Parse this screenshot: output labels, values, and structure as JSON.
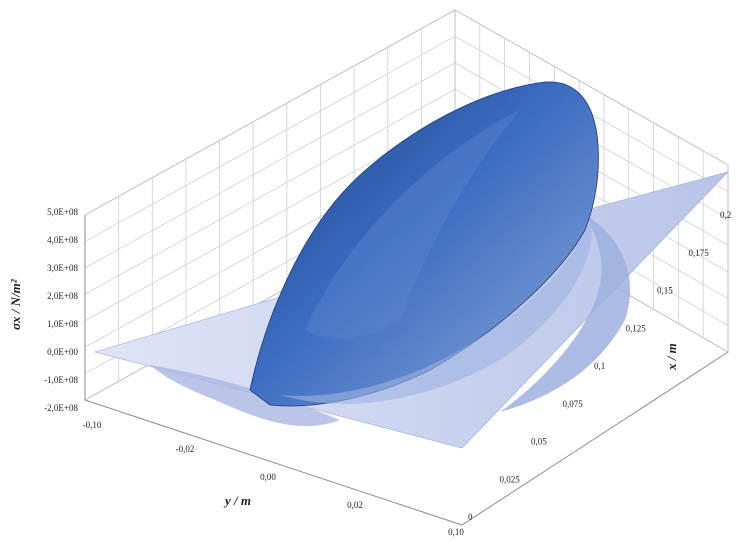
{
  "chart_data": {
    "type": "surface",
    "title": "",
    "zlabel": "σx / N/m²",
    "ylabel": "y / m",
    "xlabel": "x / m",
    "z_ticks": [
      "5,0E+08",
      "4,0E+08",
      "3,0E+08",
      "2,0E+08",
      "1,0E+08",
      "0,0E+00",
      "-1,0E+08",
      "-2,0E+08"
    ],
    "y_ticks": [
      "-0,10",
      "-0,02",
      "0,00",
      "0,02",
      "0,10"
    ],
    "x_ticks": [
      "0",
      "0,025",
      "0,05",
      "0,075",
      "0,1",
      "0,125",
      "0,15",
      "0,175",
      "0,2"
    ],
    "zlim": [
      -200000000,
      500000000
    ],
    "ylim": [
      -0.1,
      0.1
    ],
    "xlim": [
      0,
      0.2
    ],
    "grid": true,
    "colors": {
      "surface_low": "#c7cfea",
      "surface_high": "#2f5fae",
      "grid": "#cfcfcf"
    },
    "surface_description": "Stress ridge centered at y=0 running along x, peaking near 5,0E+08 around x≈0.15–0.2, with shallow negative troughs on both flanks"
  }
}
